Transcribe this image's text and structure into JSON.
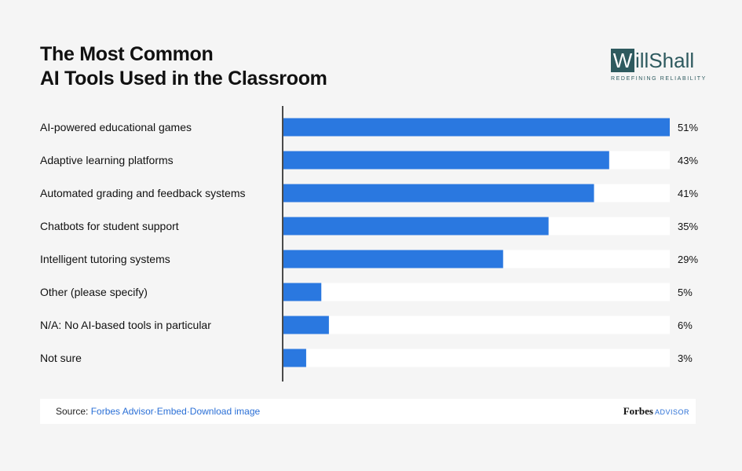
{
  "title": {
    "line1": "The Most Common",
    "line2": "AI Tools Used in the Classroom"
  },
  "logo": {
    "mark": "W",
    "name": "illShall",
    "tagline": "REDEFINING RELIABILITY"
  },
  "chart_data": {
    "type": "bar",
    "orientation": "horizontal",
    "categories": [
      "AI-powered educational games",
      "Adaptive learning platforms",
      "Automated grading and feedback systems",
      "Chatbots for student support",
      "Intelligent tutoring systems",
      "Other (please specify)",
      "N/A: No AI-based tools in particular",
      "Not sure"
    ],
    "values": [
      51,
      43,
      41,
      35,
      29,
      5,
      6,
      3
    ],
    "value_labels": [
      "51%",
      "43%",
      "41%",
      "35%",
      "29%",
      "5%",
      "6%",
      "3%"
    ],
    "xlim": [
      0,
      51
    ],
    "grid": false,
    "colors": {
      "bar": "#2a78e0",
      "track": "#ffffff",
      "axis": "#111111"
    }
  },
  "footer": {
    "source_label": "Source:",
    "links": [
      "Forbes Advisor",
      "Embed",
      "Download image"
    ],
    "separator": "·",
    "brand": "Forbes",
    "brand_sub": "ADVISOR"
  }
}
